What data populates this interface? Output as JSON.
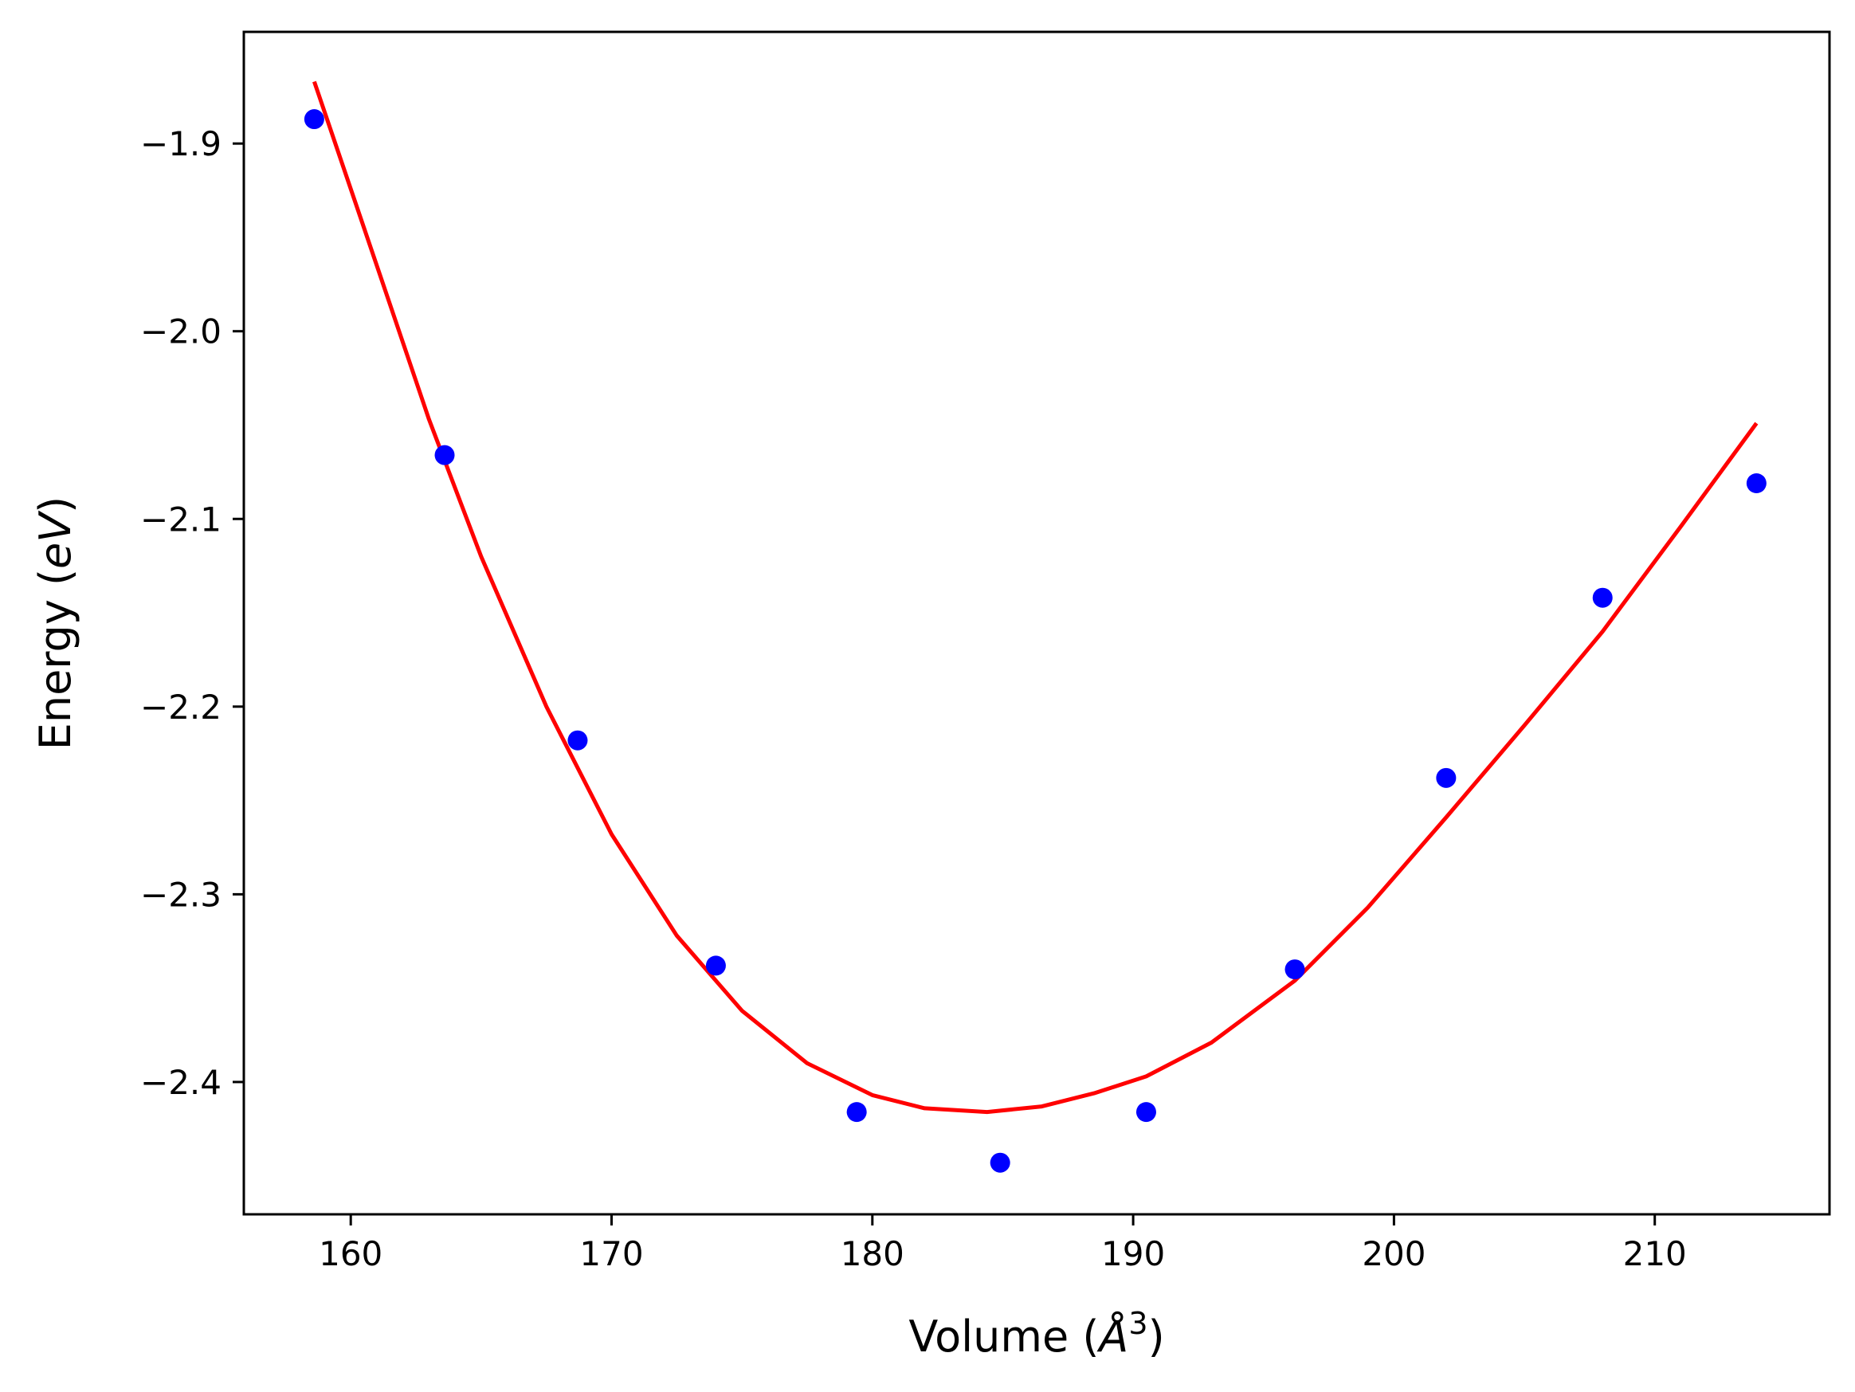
{
  "chart_data": {
    "type": "scatter",
    "title": "",
    "xlabel": {
      "prefix": "Volume (",
      "symbol": "Å",
      "power": "3",
      "suffix": ")"
    },
    "ylabel": {
      "prefix": "Energy (",
      "unit": "eV",
      "suffix": ")"
    },
    "xlim": [
      155.9,
      216.7
    ],
    "ylim": [
      -2.4705,
      -1.8405
    ],
    "xticks": [
      160,
      170,
      180,
      190,
      200,
      210
    ],
    "xtick_labels": [
      "160",
      "170",
      "180",
      "190",
      "200",
      "210"
    ],
    "yticks": [
      -1.9,
      -2.0,
      -2.1,
      -2.2,
      -2.3,
      -2.4
    ],
    "ytick_labels": [
      "−1.9",
      "−2.0",
      "−2.1",
      "−2.2",
      "−2.3",
      "−2.4"
    ],
    "grid": false,
    "series": [
      {
        "kind": "scatter",
        "color": "#0000ff",
        "x": [
          158.6,
          163.6,
          168.7,
          174.0,
          179.4,
          184.9,
          190.5,
          196.2,
          202.0,
          208.0,
          213.9
        ],
        "y": [
          -1.887,
          -2.066,
          -2.218,
          -2.338,
          -2.416,
          -2.443,
          -2.416,
          -2.34,
          -2.238,
          -2.142,
          -2.081
        ]
      },
      {
        "kind": "line",
        "color": "#ff0000",
        "x": [
          158.6,
          161.0,
          163.0,
          165.0,
          167.5,
          170.0,
          172.5,
          175.0,
          177.5,
          180.0,
          182.0,
          184.4,
          186.5,
          188.5,
          190.5,
          193.0,
          196.2,
          199.0,
          202.0,
          205.0,
          208.0,
          211.0,
          213.9
        ],
        "y": [
          -1.867,
          -1.965,
          -2.047,
          -2.12,
          -2.2,
          -2.268,
          -2.322,
          -2.362,
          -2.39,
          -2.407,
          -2.414,
          -2.416,
          -2.413,
          -2.406,
          -2.397,
          -2.379,
          -2.346,
          -2.307,
          -2.259,
          -2.21,
          -2.16,
          -2.104,
          -2.049
        ]
      }
    ]
  }
}
